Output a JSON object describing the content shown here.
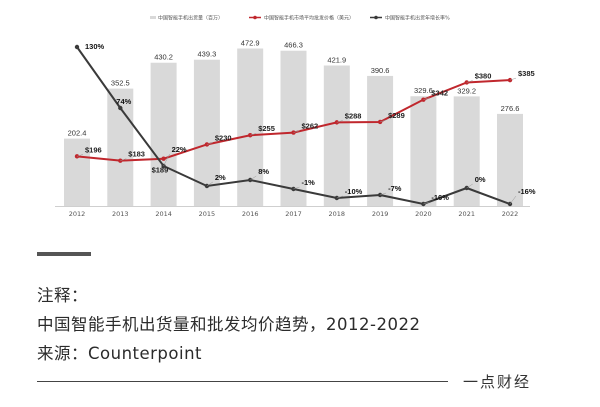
{
  "chart_data": {
    "type": "bar+line",
    "legend": [
      "中国智能手机出货量（百万）",
      "中国智能手机市场平均批发价格（美元）",
      "中国智能手机出货年增长率%"
    ],
    "categories": [
      "2012",
      "2013",
      "2014",
      "2015",
      "2016",
      "2017",
      "2018",
      "2019",
      "2020",
      "2021",
      "2022"
    ],
    "series": [
      {
        "name": "中国智能手机出货量（百万）",
        "type": "bar",
        "color": "#d9d9d9",
        "values": [
          202.4,
          352.5,
          430.2,
          439.3,
          472.9,
          466.3,
          421.9,
          390.6,
          329.6,
          329.2,
          276.6
        ],
        "labels": [
          "202.4",
          "352.5",
          "430.2",
          "439.3",
          "472.9",
          "466.3",
          "421.9",
          "390.6",
          "329.6",
          "329.2",
          "276.6"
        ]
      },
      {
        "name": "中国智能手机市场平均批发价格（美元）",
        "type": "line",
        "color": "#c0272d",
        "values": [
          196,
          183,
          189,
          230,
          255,
          262,
          288,
          289,
          342,
          380,
          385
        ],
        "labels": [
          "$196",
          "$183",
          "$189",
          "$230",
          "$255",
          "$262",
          "$288",
          "$289",
          "$342",
          "$380",
          "$385"
        ]
      },
      {
        "name": "中国智能手机出货年增长率%",
        "type": "line",
        "color": "#3a3a3a",
        "values": [
          130,
          74,
          22,
          2,
          8,
          -1,
          -10,
          -7,
          -16,
          0,
          -16
        ],
        "labels": [
          "130%",
          "74%",
          "22%",
          "2%",
          "8%",
          "-1%",
          "-10%",
          "-7%",
          "-16%",
          "0%",
          "-16%"
        ]
      }
    ]
  },
  "notes": {
    "heading": "注释：",
    "description": "中国智能手机出货量和批发均价趋势，2012-2022",
    "source": "来源：Counterpoint"
  },
  "brand": "一点财经"
}
